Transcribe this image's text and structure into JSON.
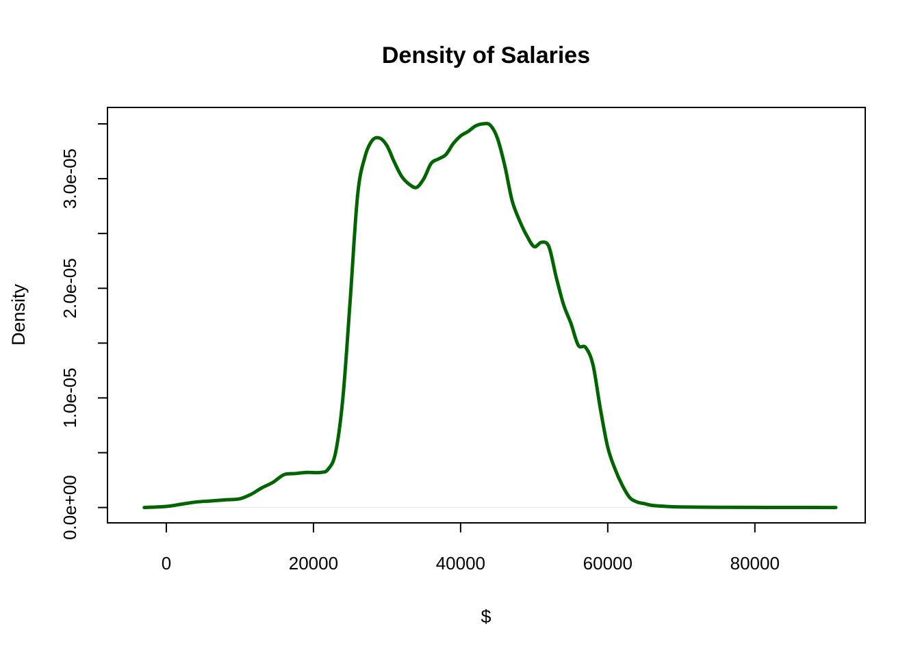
{
  "chart_data": {
    "type": "line",
    "title": "Density of Salaries",
    "xlabel": "$",
    "ylabel": "Density",
    "xlim": [
      -8000,
      95000
    ],
    "ylim": [
      -1.4e-06,
      3.65e-05
    ],
    "x_ticks": [
      {
        "value": 0,
        "label": "0"
      },
      {
        "value": 20000,
        "label": "20000"
      },
      {
        "value": 40000,
        "label": "40000"
      },
      {
        "value": 60000,
        "label": "60000"
      },
      {
        "value": 80000,
        "label": "80000"
      }
    ],
    "y_ticks": [
      0,
      5e-06,
      1e-05,
      1.5e-05,
      2e-05,
      2.5e-05,
      3e-05,
      3.5e-05
    ],
    "y_tick_labels": [
      {
        "value": 0,
        "label": "0.0e+00"
      },
      {
        "value": 1e-05,
        "label": "1.0e-05"
      },
      {
        "value": 2e-05,
        "label": "2.0e-05"
      },
      {
        "value": 3e-05,
        "label": "3.0e-05"
      }
    ],
    "grid": false,
    "line_color": "#006400",
    "zero_line_color": "#e8e8e8",
    "series": [
      {
        "x": [
          -3000,
          0,
          2000,
          4000,
          6000,
          8000,
          10000,
          11500,
          13000,
          14500,
          16000,
          17500,
          19000,
          21000,
          22000,
          23000,
          24000,
          25000,
          26000,
          27000,
          28000,
          29000,
          30000,
          31000,
          32000,
          33000,
          34000,
          35000,
          36000,
          37000,
          38000,
          39000,
          40000,
          41000,
          42000,
          43000,
          44000,
          45000,
          46000,
          47000,
          48000,
          49000,
          50000,
          51000,
          52000,
          53000,
          54000,
          55000,
          56000,
          57000,
          58000,
          59000,
          60000,
          61000,
          62000,
          63000,
          64000,
          65000,
          66000,
          68000,
          70000,
          75000,
          80000,
          85000,
          91000
        ],
        "y": [
          0,
          1e-07,
          3e-07,
          5e-07,
          6e-07,
          7e-07,
          8e-07,
          1.2e-06,
          1.8e-06,
          2.3e-06,
          3e-06,
          3.1e-06,
          3.2e-06,
          3.2e-06,
          3.5e-06,
          5e-06,
          1e-05,
          1.9e-05,
          2.85e-05,
          3.2e-05,
          3.35e-05,
          3.37e-05,
          3.3e-05,
          3.15e-05,
          3.02e-05,
          2.95e-05,
          2.92e-05,
          3e-05,
          3.14e-05,
          3.18e-05,
          3.22e-05,
          3.32e-05,
          3.39e-05,
          3.43e-05,
          3.48e-05,
          3.5e-05,
          3.49e-05,
          3.37e-05,
          3.12e-05,
          2.8e-05,
          2.62e-05,
          2.48e-05,
          2.38e-05,
          2.42e-05,
          2.38e-05,
          2.1e-05,
          1.85e-05,
          1.68e-05,
          1.48e-05,
          1.46e-05,
          1.3e-05,
          9e-06,
          5.5e-06,
          3.5e-06,
          2e-06,
          9e-07,
          5e-07,
          3.5e-07,
          2e-07,
          1e-07,
          5e-08,
          2e-08,
          1e-08,
          5e-09,
          0
        ]
      }
    ]
  }
}
